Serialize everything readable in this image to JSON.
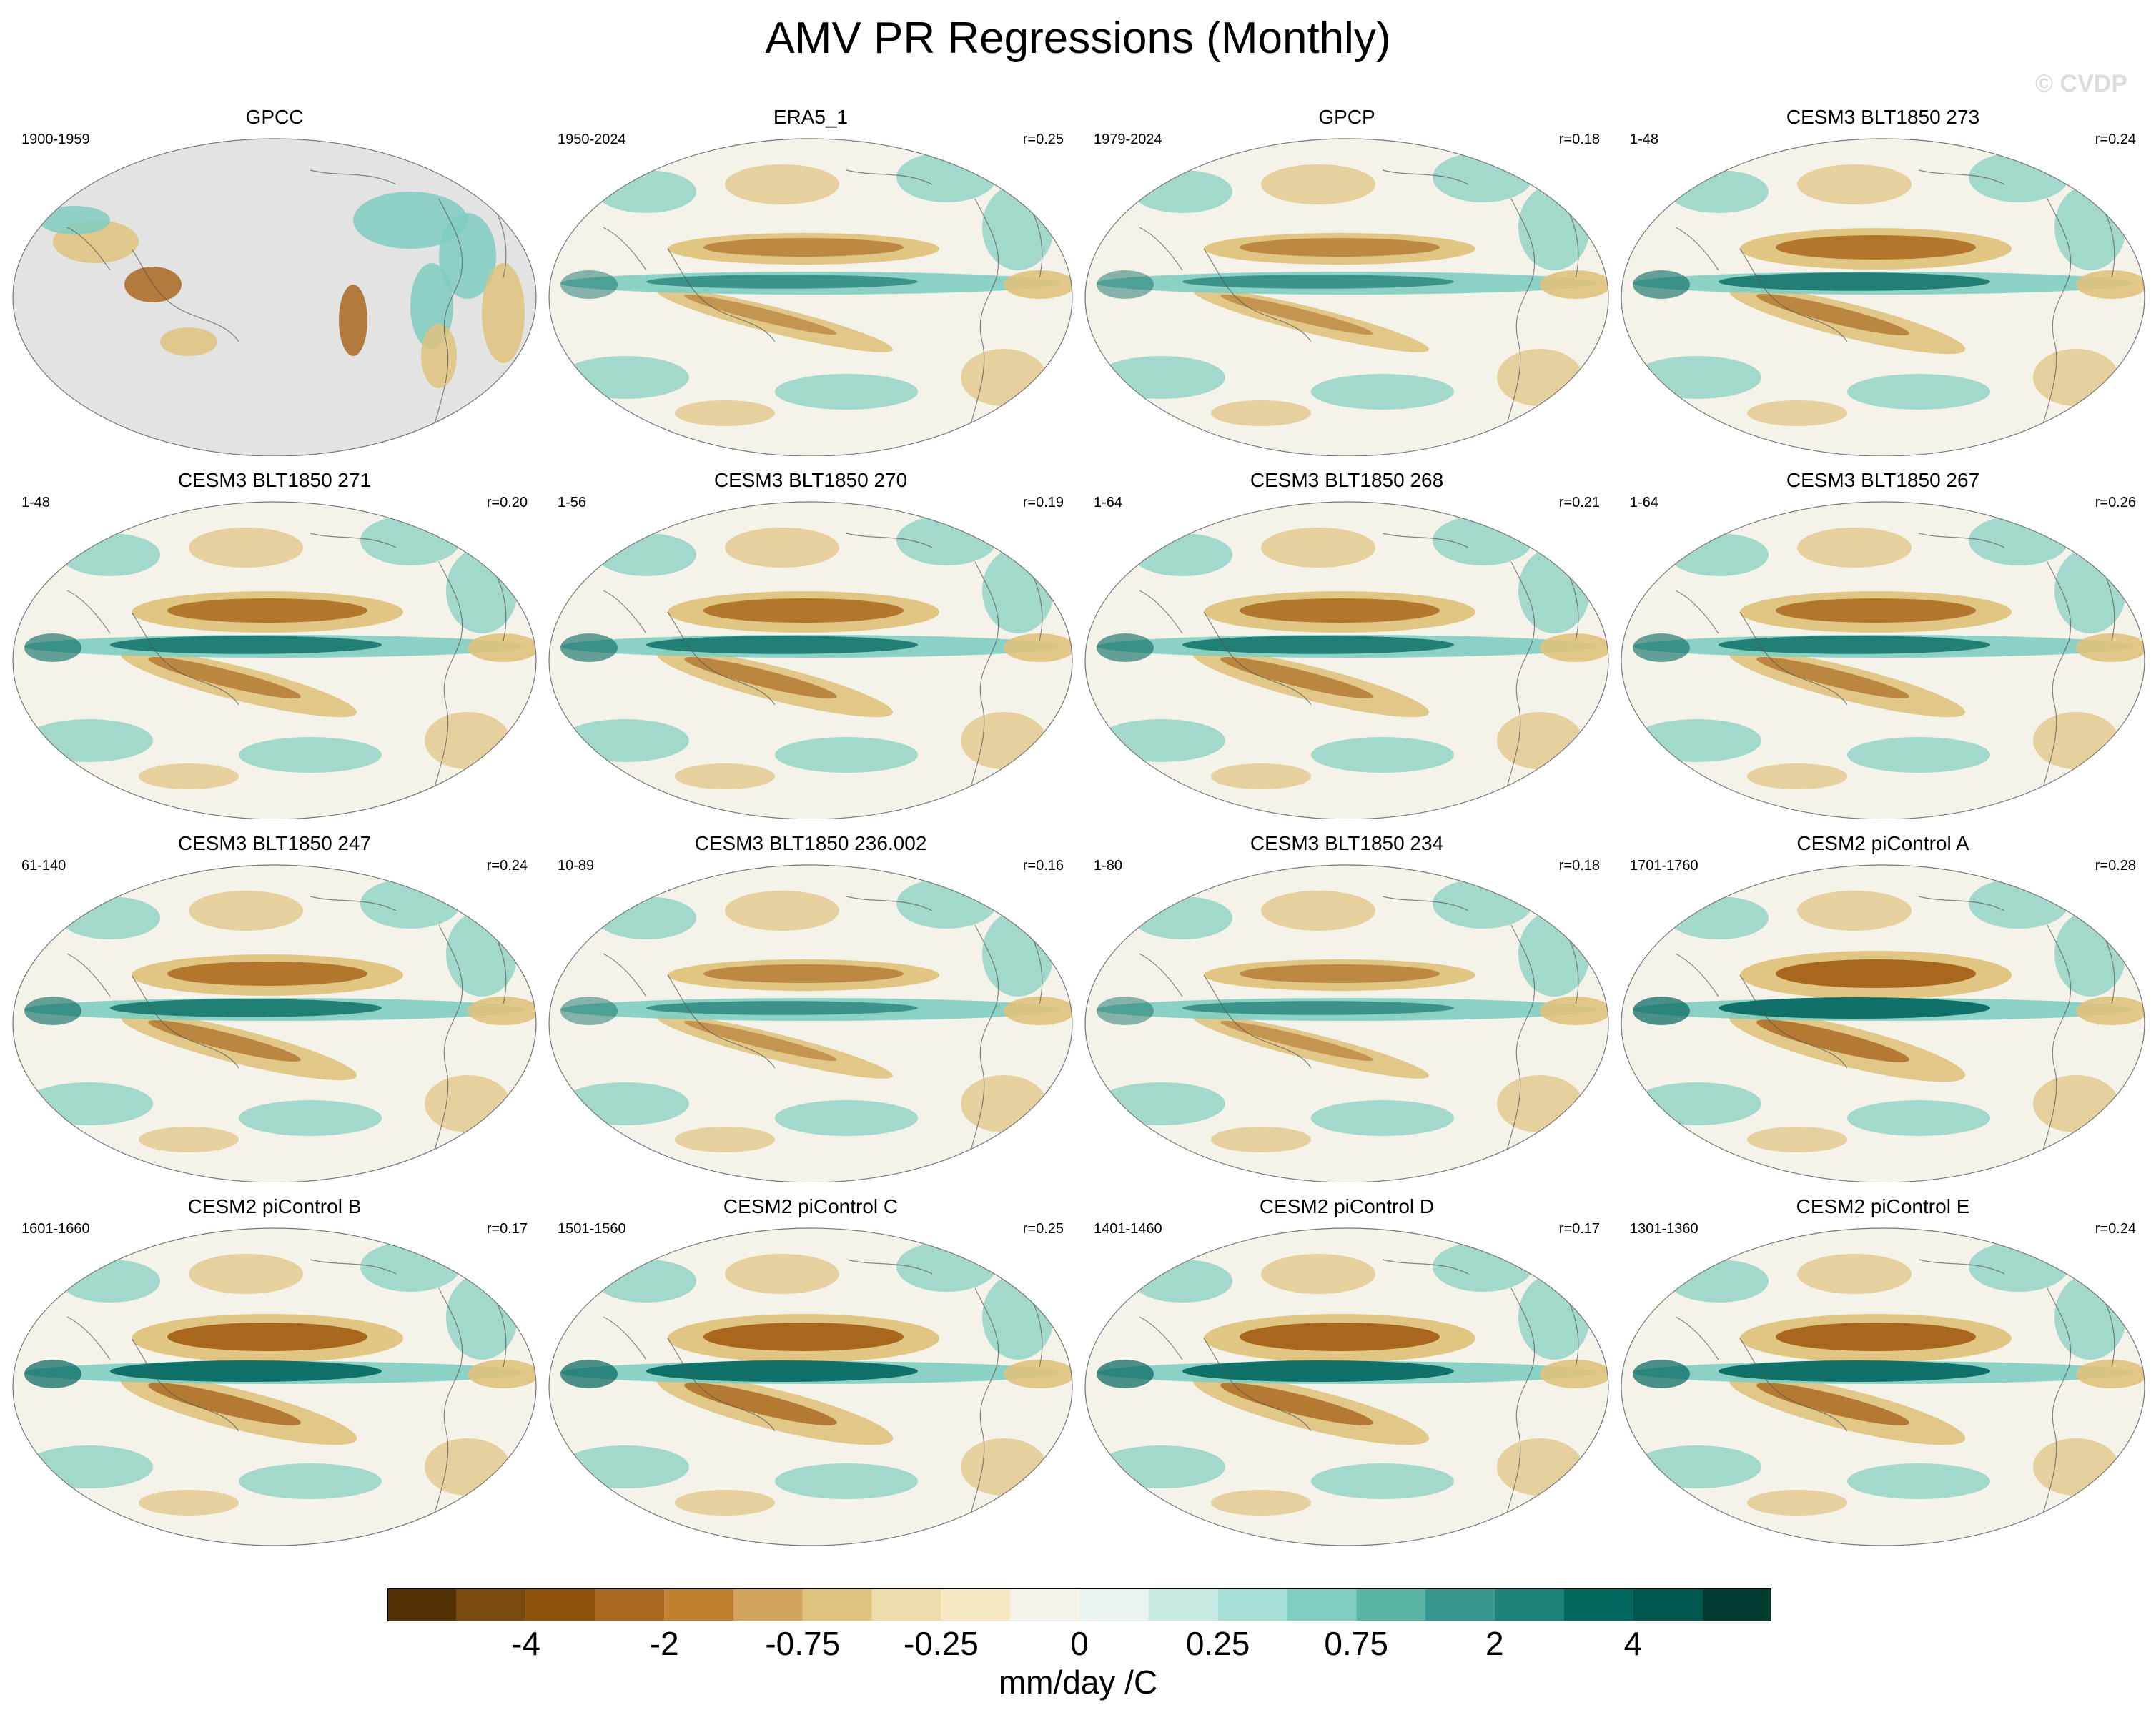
{
  "figure": {
    "title": "AMV PR Regressions (Monthly)",
    "watermark": "© CVDP"
  },
  "panels": [
    {
      "title": "GPCC",
      "years": "1900-1959",
      "r": "",
      "style": "obs_land"
    },
    {
      "title": "ERA5_1",
      "years": "1950-2024",
      "r": "r=0.25",
      "style": "weak"
    },
    {
      "title": "GPCP",
      "years": "1979-2024",
      "r": "r=0.18",
      "style": "weak"
    },
    {
      "title": "CESM3 BLT1850 273",
      "years": "1-48",
      "r": "r=0.24",
      "style": "model"
    },
    {
      "title": "CESM3 BLT1850 271",
      "years": "1-48",
      "r": "r=0.20",
      "style": "model"
    },
    {
      "title": "CESM3 BLT1850 270",
      "years": "1-56",
      "r": "r=0.19",
      "style": "model"
    },
    {
      "title": "CESM3 BLT1850 268",
      "years": "1-64",
      "r": "r=0.21",
      "style": "model"
    },
    {
      "title": "CESM3 BLT1850 267",
      "years": "1-64",
      "r": "r=0.26",
      "style": "model"
    },
    {
      "title": "CESM3 BLT1850 247",
      "years": "61-140",
      "r": "r=0.24",
      "style": "model"
    },
    {
      "title": "CESM3 BLT1850 236.002",
      "years": "10-89",
      "r": "r=0.16",
      "style": "weak"
    },
    {
      "title": "CESM3 BLT1850 234",
      "years": "1-80",
      "r": "r=0.18",
      "style": "weak"
    },
    {
      "title": "CESM2 piControl A",
      "years": "1701-1760",
      "r": "r=0.28",
      "style": "strong"
    },
    {
      "title": "CESM2 piControl B",
      "years": "1601-1660",
      "r": "r=0.17",
      "style": "strong"
    },
    {
      "title": "CESM2 piControl C",
      "years": "1501-1560",
      "r": "r=0.25",
      "style": "strong"
    },
    {
      "title": "CESM2 piControl D",
      "years": "1401-1460",
      "r": "r=0.17",
      "style": "strong"
    },
    {
      "title": "CESM2 piControl E",
      "years": "1301-1360",
      "r": "r=0.24",
      "style": "strong"
    }
  ],
  "colorbar": {
    "unit": "mm/day /C",
    "colors": [
      "#543005",
      "#7a4a0e",
      "#8c510a",
      "#a9671e",
      "#bf812d",
      "#d2a35c",
      "#dfc27d",
      "#eedcac",
      "#f6e8c3",
      "#f5f2ea",
      "#ebf3f1",
      "#c7eae5",
      "#a6dfd6",
      "#80cdc1",
      "#5ab4a6",
      "#35978f",
      "#1d8277",
      "#01665e",
      "#00574f",
      "#003c30"
    ],
    "ticks": [
      "-4",
      "-2",
      "-0.75",
      "-0.25",
      "0",
      "0.25",
      "0.75",
      "2",
      "4"
    ],
    "tick_boundaries": [
      2,
      4,
      6,
      8,
      10,
      12,
      14,
      16,
      18
    ]
  },
  "map_colors": {
    "ocean_neutral": "#f5f2ea",
    "dry_strong": "#a9671e",
    "dry_weak": "#dfc27d",
    "wet_strong": "#01665e",
    "wet_weak": "#80cdc1",
    "missing": "#e3e3e3",
    "coastline": "#555555"
  }
}
